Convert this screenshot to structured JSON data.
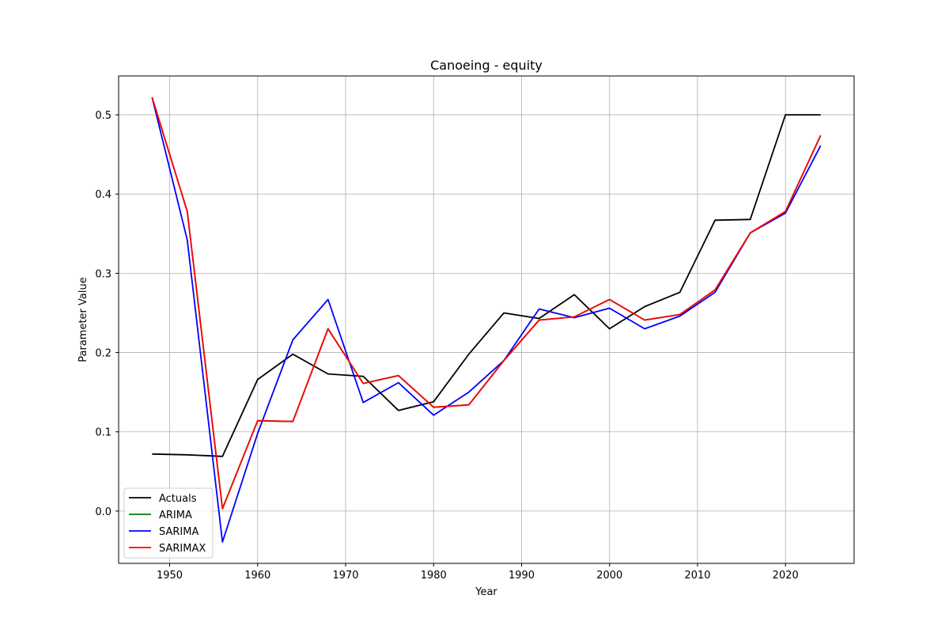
{
  "chart_data": {
    "type": "line",
    "title": "Canoeing - equity",
    "xlabel": "Year",
    "ylabel": "Parameter Value",
    "xlim": [
      1944.2,
      1927.8
    ],
    "x_ticks": [
      1950,
      1960,
      1970,
      1980,
      1990,
      2000,
      2010,
      2020
    ],
    "ylim": [
      -0.066,
      0.549
    ],
    "y_ticks": [
      0.0,
      0.1,
      0.2,
      0.3,
      0.4,
      0.5
    ],
    "y_tick_labels": [
      "0.0",
      "0.1",
      "0.2",
      "0.3",
      "0.4",
      "0.5"
    ],
    "grid": true,
    "legend_position": "lower-left",
    "x": [
      1948,
      1952,
      1956,
      1960,
      1964,
      1968,
      1972,
      1976,
      1980,
      1984,
      1988,
      1992,
      1996,
      2000,
      2004,
      2008,
      2012,
      2016,
      2020,
      2024
    ],
    "series": [
      {
        "name": "Actuals",
        "color": "#000000",
        "values": [
          0.072,
          0.071,
          0.069,
          0.166,
          0.198,
          0.173,
          0.17,
          0.127,
          0.138,
          0.198,
          0.25,
          0.243,
          0.273,
          0.23,
          0.258,
          0.276,
          0.367,
          0.368,
          0.5,
          0.5
        ]
      },
      {
        "name": "ARIMA",
        "color": "#008000",
        "values": [
          0.522,
          0.378,
          0.003,
          0.114,
          0.113,
          0.23,
          0.161,
          0.171,
          0.131,
          0.134,
          0.19,
          0.241,
          0.245,
          0.267,
          0.241,
          0.248,
          0.279,
          0.351,
          0.378,
          0.474
        ]
      },
      {
        "name": "SARIMA",
        "color": "#0000ff",
        "values": [
          0.522,
          0.342,
          -0.039,
          0.098,
          0.216,
          0.267,
          0.137,
          0.162,
          0.121,
          0.15,
          0.19,
          0.255,
          0.244,
          0.256,
          0.23,
          0.246,
          0.276,
          0.351,
          0.376,
          0.461
        ]
      },
      {
        "name": "SARIMAX",
        "color": "#ff0000",
        "values": [
          0.522,
          0.378,
          0.003,
          0.114,
          0.113,
          0.23,
          0.161,
          0.171,
          0.131,
          0.134,
          0.19,
          0.241,
          0.245,
          0.267,
          0.241,
          0.248,
          0.279,
          0.351,
          0.378,
          0.474
        ]
      }
    ]
  }
}
